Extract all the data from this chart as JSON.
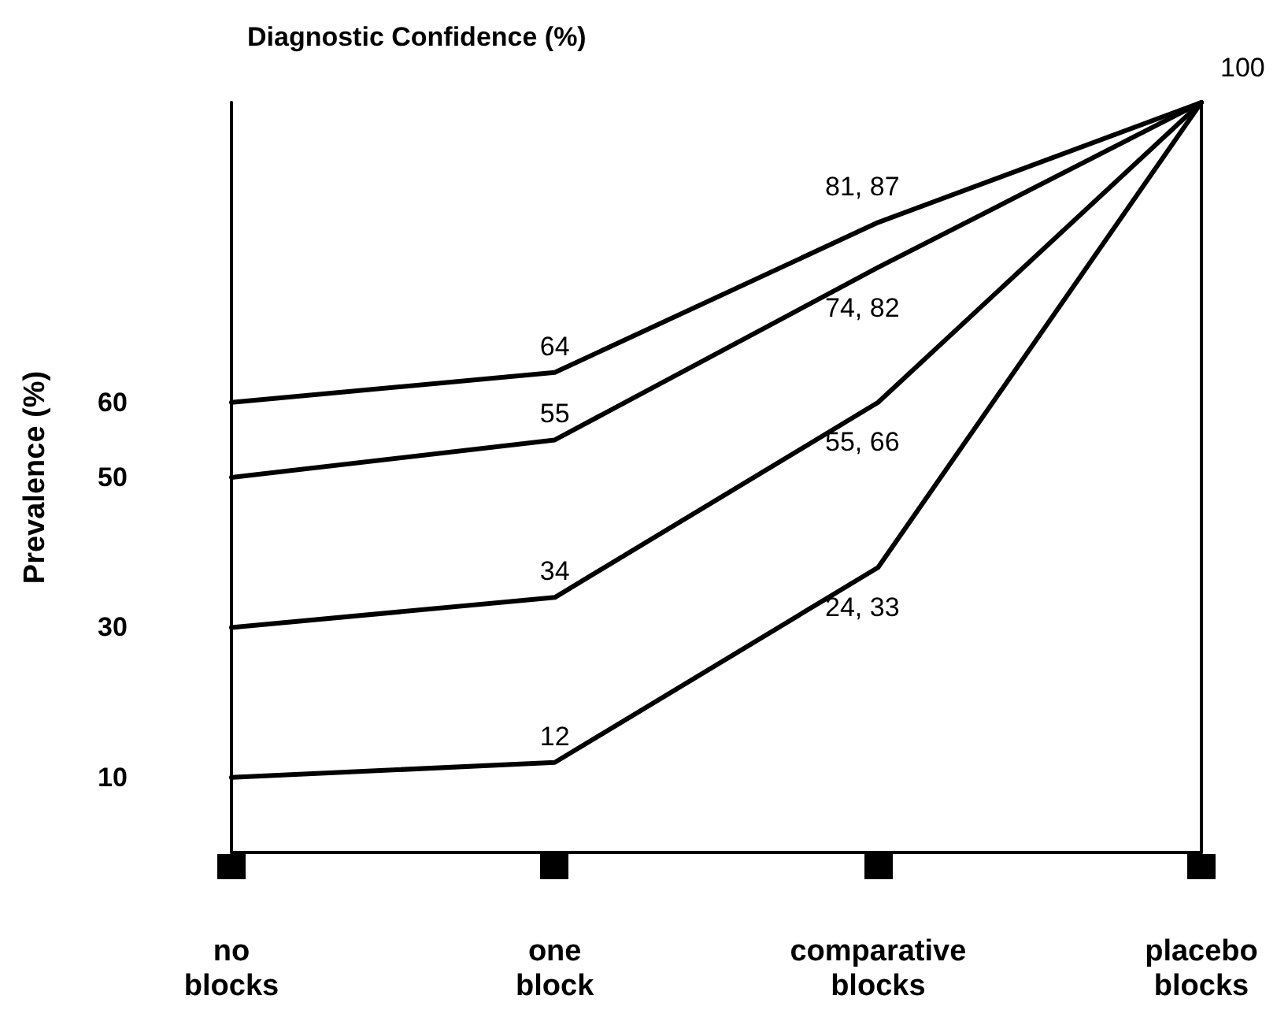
{
  "chart_data": {
    "type": "line",
    "title": "Diagnostic Confidence (%)",
    "ylabel": "Prevalence (%)",
    "categories": [
      "no blocks",
      "one block",
      "comparative blocks",
      "placebo blocks"
    ],
    "series": [
      {
        "color": "#000000",
        "values": [
          60,
          64,
          84,
          100
        ],
        "value_labels": [
          null,
          "64",
          null,
          "100"
        ]
      },
      {
        "color": "#000000",
        "values": [
          50,
          55,
          78,
          100
        ],
        "value_labels": [
          null,
          "55",
          null,
          null
        ]
      },
      {
        "color": "#000000",
        "values": [
          30,
          34,
          60,
          100
        ],
        "value_labels": [
          null,
          "34",
          null,
          null
        ]
      },
      {
        "color": "#000000",
        "values": [
          10,
          12,
          38,
          100
        ],
        "value_labels": [
          null,
          "12",
          null,
          null
        ]
      }
    ],
    "annotations": [
      {
        "text": "81, 87",
        "x": "comparative blocks",
        "y": 84
      },
      {
        "text": "74, 82",
        "x": "comparative blocks",
        "y": 78
      },
      {
        "text": "55, 66",
        "x": "comparative blocks",
        "y": 60
      },
      {
        "text": "24, 33",
        "x": "comparative blocks",
        "y": 38
      }
    ],
    "ylim": [
      0,
      100
    ],
    "yticks": [
      10,
      30,
      50,
      60
    ],
    "grid": false,
    "marker": "none",
    "line_style": "solid"
  }
}
